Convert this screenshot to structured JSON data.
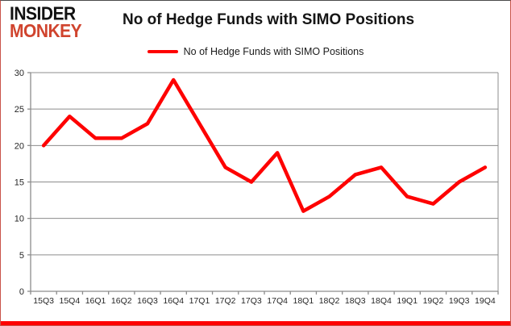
{
  "logo": {
    "line1": "INSIDER",
    "line2": "MONKEY"
  },
  "header": {
    "title": "No of Hedge Funds with SIMO Positions"
  },
  "legend": {
    "label": "No of Hedge Funds with SIMO Positions"
  },
  "colors": {
    "series_line": "#fe0000",
    "logo_red": "#d0442e",
    "gridline": "#8c8c8c",
    "bottom_bar": "#fe0000",
    "axis_text": "#262626"
  },
  "chart_data": {
    "type": "line",
    "title": "No of Hedge Funds with SIMO Positions",
    "categories": [
      "15Q3",
      "15Q4",
      "16Q1",
      "16Q2",
      "16Q3",
      "16Q4",
      "17Q1",
      "17Q2",
      "17Q3",
      "17Q4",
      "18Q1",
      "18Q2",
      "18Q3",
      "18Q4",
      "19Q1",
      "19Q2",
      "19Q3",
      "19Q4"
    ],
    "series": [
      {
        "name": "No of Hedge Funds with SIMO Positions",
        "color": "#fe0000",
        "values": [
          20,
          24,
          21,
          21,
          23,
          29,
          23,
          17,
          15,
          19,
          11,
          13,
          16,
          17,
          13,
          12,
          15,
          17
        ]
      }
    ],
    "xlabel": "",
    "ylabel": "",
    "ylim": [
      0,
      30
    ],
    "yticks": [
      0,
      5,
      10,
      15,
      20,
      25,
      30
    ],
    "grid": true,
    "legend_position": "top-center"
  }
}
